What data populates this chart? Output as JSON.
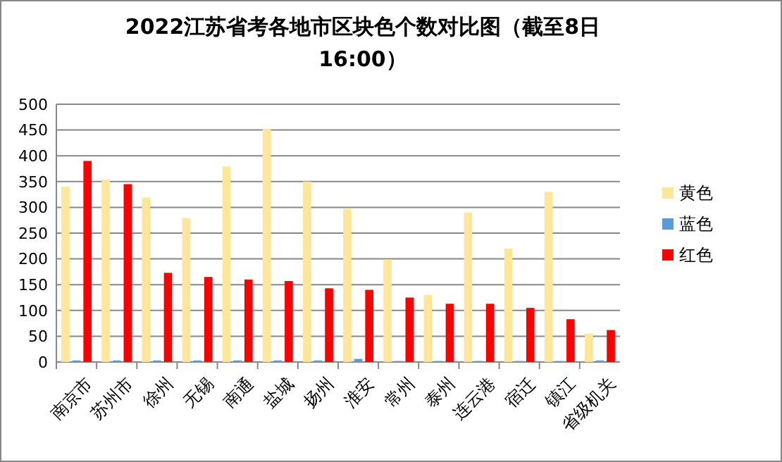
{
  "chart_data": {
    "type": "bar",
    "title": "2022江苏省考各地市区块色个数对比图（截至8日16:00）",
    "categories": [
      "南京市",
      "苏州市",
      "徐州",
      "无锡",
      "南通",
      "盐城",
      "扬州",
      "淮安",
      "常州",
      "泰州",
      "连云港",
      "宿迁",
      "镇江",
      "省级机关"
    ],
    "series": [
      {
        "name": "黄色",
        "color": "#ffe699",
        "values": [
          340,
          354,
          319,
          279,
          379,
          452,
          350,
          297,
          199,
          130,
          290,
          220,
          330,
          55
        ]
      },
      {
        "name": "蓝色",
        "color": "#5b9bd5",
        "values": [
          3,
          3,
          3,
          3,
          3,
          3,
          3,
          6,
          2,
          2,
          2,
          2,
          2,
          3
        ]
      },
      {
        "name": "红色",
        "color": "#ff0000",
        "values": [
          390,
          345,
          173,
          165,
          160,
          157,
          143,
          140,
          125,
          113,
          113,
          105,
          83,
          62
        ]
      }
    ],
    "ylim": [
      0,
      500
    ],
    "yticks": [
      0,
      50,
      100,
      150,
      200,
      250,
      300,
      350,
      400,
      450,
      500
    ],
    "grid": "y",
    "legend": "right"
  }
}
